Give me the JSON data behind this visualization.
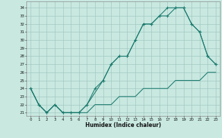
{
  "xlabel": "Humidex (Indice chaleur)",
  "bg_color": "#c8e8e0",
  "grid_color": "#a0c8c0",
  "line_color": "#1a7a6e",
  "xlim": [
    -0.5,
    23.5
  ],
  "ylim": [
    20.6,
    34.8
  ],
  "yticks": [
    21,
    22,
    23,
    24,
    25,
    26,
    27,
    28,
    29,
    30,
    31,
    32,
    33,
    34
  ],
  "xticks": [
    0,
    1,
    2,
    3,
    4,
    5,
    6,
    7,
    8,
    9,
    10,
    11,
    12,
    13,
    14,
    15,
    16,
    17,
    18,
    19,
    20,
    21,
    22,
    23
  ],
  "line1_x": [
    0,
    1,
    2,
    3,
    4,
    5,
    6,
    7,
    8,
    9,
    10,
    11,
    12,
    13,
    14,
    15,
    16,
    17,
    18,
    19,
    20,
    21,
    22,
    23
  ],
  "line1_y": [
    24,
    22,
    21,
    22,
    21,
    21,
    21,
    21,
    22,
    22,
    22,
    23,
    23,
    23,
    24,
    24,
    24,
    24,
    25,
    25,
    25,
    25,
    26,
    26
  ],
  "line2_x": [
    0,
    1,
    2,
    3,
    4,
    5,
    6,
    7,
    8,
    9,
    10,
    11,
    12,
    13,
    14,
    15,
    16,
    17,
    18,
    19,
    20,
    21,
    22,
    23
  ],
  "line2_y": [
    24,
    22,
    21,
    22,
    21,
    21,
    21,
    22,
    24,
    25,
    27,
    28,
    28,
    30,
    32,
    32,
    33,
    34,
    34,
    34,
    32,
    31,
    28,
    27
  ],
  "line3_x": [
    0,
    1,
    2,
    3,
    4,
    5,
    6,
    7,
    9,
    10,
    11,
    12,
    13,
    14,
    15,
    16,
    17,
    18,
    19,
    20,
    21,
    22,
    23
  ],
  "line3_y": [
    24,
    22,
    21,
    22,
    21,
    21,
    21,
    22,
    25,
    27,
    28,
    28,
    30,
    32,
    32,
    33,
    33,
    34,
    34,
    32,
    31,
    28,
    27
  ]
}
